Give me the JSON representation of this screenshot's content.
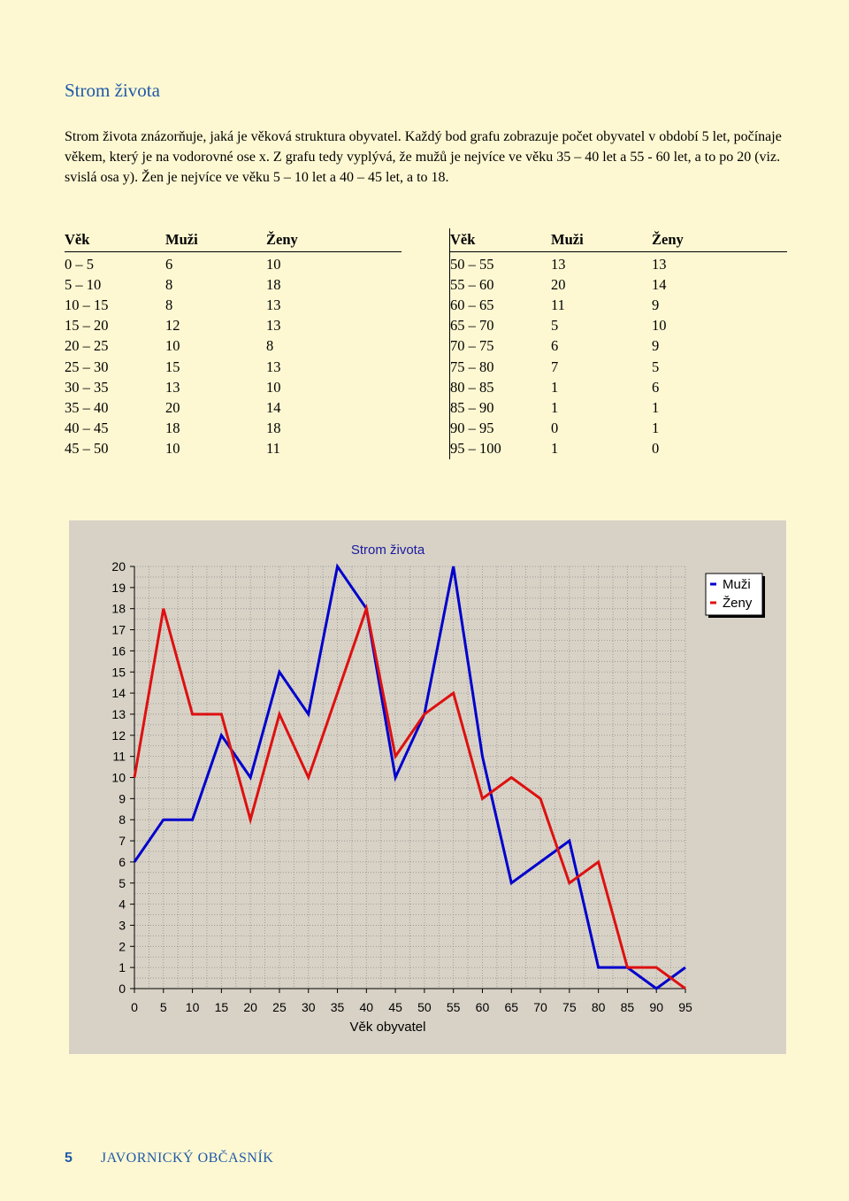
{
  "document": {
    "title": "Strom života",
    "intro": "Strom života znázorňuje,  jaká je věková struktura obyvatel. Každý bod grafu zobrazuje počet obyvatel v období 5 let, počínaje  věkem, který je na vodorovné ose x. Z grafu tedy vyplývá, že mužů je nejvíce ve věku 35 – 40 let a 55 - 60 let, a to po 20 (viz. svislá osa y). Žen je nejvíce ve věku 5 – 10 let a 40 – 45 let, a to 18."
  },
  "table": {
    "headers": [
      "Věk",
      "Muži",
      "Ženy"
    ],
    "left_rows": [
      [
        "0 – 5",
        "6",
        "10"
      ],
      [
        "5 – 10",
        "8",
        "18"
      ],
      [
        "10 – 15",
        "8",
        "13"
      ],
      [
        "15 – 20",
        "12",
        "13"
      ],
      [
        "20 – 25",
        "10",
        "8"
      ],
      [
        "25 – 30",
        "15",
        "13"
      ],
      [
        "30 – 35",
        "13",
        "10"
      ],
      [
        "35 – 40",
        "20",
        "14"
      ],
      [
        "40 – 45",
        "18",
        "18"
      ],
      [
        "45 – 50",
        "10",
        "11"
      ]
    ],
    "right_rows": [
      [
        "50 – 55",
        "13",
        "13"
      ],
      [
        "55 – 60",
        "20",
        "14"
      ],
      [
        "60 – 65",
        "11",
        "9"
      ],
      [
        "65 – 70",
        "5",
        "10"
      ],
      [
        "70 – 75",
        "6",
        "9"
      ],
      [
        "75 – 80",
        "7",
        "5"
      ],
      [
        "80 – 85",
        "1",
        "6"
      ],
      [
        "85 – 90",
        "1",
        "1"
      ],
      [
        "90 – 95",
        "0",
        "1"
      ],
      [
        "95 – 100",
        "1",
        "0"
      ]
    ]
  },
  "chart_data": {
    "type": "line",
    "title": "Strom života",
    "xlabel": "Věk obyvatel",
    "ylabel": "",
    "x": [
      0,
      5,
      10,
      15,
      20,
      25,
      30,
      35,
      40,
      45,
      50,
      55,
      60,
      65,
      70,
      75,
      80,
      85,
      90,
      95
    ],
    "xlim": [
      0,
      95
    ],
    "ylim": [
      0,
      20
    ],
    "x_ticks": [
      0,
      5,
      10,
      15,
      20,
      25,
      30,
      35,
      40,
      45,
      50,
      55,
      60,
      65,
      70,
      75,
      80,
      85,
      90,
      95
    ],
    "y_ticks": [
      0,
      1,
      2,
      3,
      4,
      5,
      6,
      7,
      8,
      9,
      10,
      11,
      12,
      13,
      14,
      15,
      16,
      17,
      18,
      19,
      20
    ],
    "grid": true,
    "legend_position": "top-right",
    "series": [
      {
        "name": "Muži",
        "color": "#0000cc",
        "values": [
          6,
          8,
          8,
          12,
          10,
          15,
          13,
          20,
          18,
          10,
          13,
          20,
          11,
          5,
          6,
          7,
          1,
          1,
          0,
          1
        ]
      },
      {
        "name": "Ženy",
        "color": "#dd1111",
        "values": [
          10,
          18,
          13,
          13,
          8,
          13,
          10,
          14,
          18,
          11,
          13,
          14,
          9,
          10,
          9,
          5,
          6,
          1,
          1,
          0
        ]
      }
    ]
  },
  "footer": {
    "page_number": "5",
    "magazine": "JAVORNICKÝ OBČASNÍK"
  }
}
